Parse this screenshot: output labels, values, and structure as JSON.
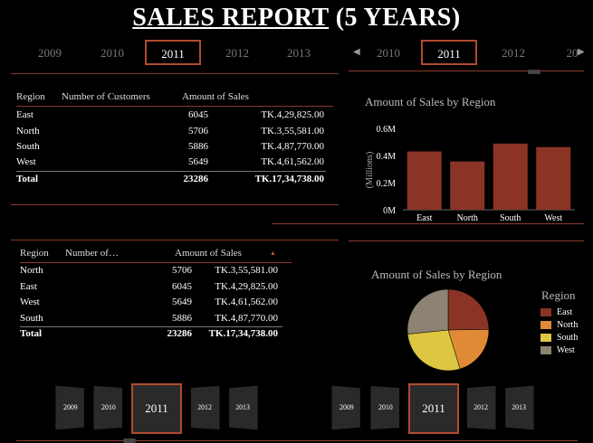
{
  "title": {
    "main": "SALES REPORT",
    "suffix": " (5 YEARS)"
  },
  "top_left_years": [
    "2009",
    "2010",
    "2011",
    "2012",
    "2013"
  ],
  "top_right_years": [
    "2010",
    "2011",
    "2012",
    "20"
  ],
  "table1": {
    "headers": [
      "Region",
      "Number of Customers",
      "Amount of Sales"
    ],
    "rows": [
      [
        "East",
        "6045",
        "TK.4,29,825.00"
      ],
      [
        "North",
        "5706",
        "TK.3,55,581.00"
      ],
      [
        "South",
        "5886",
        "TK.4,87,770.00"
      ],
      [
        "West",
        "5649",
        "TK.4,61,562.00"
      ]
    ],
    "total": [
      "Total",
      "23286",
      "TK.17,34,738.00"
    ]
  },
  "table2": {
    "headers": [
      "Region",
      "Number of…",
      "Amount of Sales"
    ],
    "sort_glyph": "▲",
    "rows": [
      [
        "North",
        "5706",
        "TK.3,55,581.00"
      ],
      [
        "East",
        "6045",
        "TK.4,29,825.00"
      ],
      [
        "West",
        "5649",
        "TK.4,61,562.00"
      ],
      [
        "South",
        "5886",
        "TK.4,87,770.00"
      ]
    ],
    "total": [
      "Total",
      "23286",
      "TK.17,34,738.00"
    ]
  },
  "chart_data": [
    {
      "type": "bar",
      "title": "Amount of Sales by Region",
      "ylabel": "(Millions)",
      "categories": [
        "East",
        "North",
        "South",
        "West"
      ],
      "values": [
        0.43,
        0.356,
        0.488,
        0.462
      ],
      "ylim": [
        0,
        0.6
      ],
      "yticks": [
        "0M",
        "0.2M",
        "0.4M",
        "0.6M"
      ],
      "color": "#8b3426"
    },
    {
      "type": "pie",
      "title": "Amount of Sales by Region",
      "legend_title": "Region",
      "labels": [
        "East",
        "North",
        "South",
        "West"
      ],
      "values": [
        429825,
        355581,
        487770,
        461562
      ],
      "colors": [
        "#8b3426",
        "#e08a35",
        "#ddc641",
        "#8e8372"
      ]
    }
  ],
  "bottom_left_years": [
    "2009",
    "2010",
    "2011",
    "2012",
    "2013"
  ],
  "bottom_right_years": [
    "2009",
    "2010",
    "2011",
    "2012",
    "2013"
  ]
}
